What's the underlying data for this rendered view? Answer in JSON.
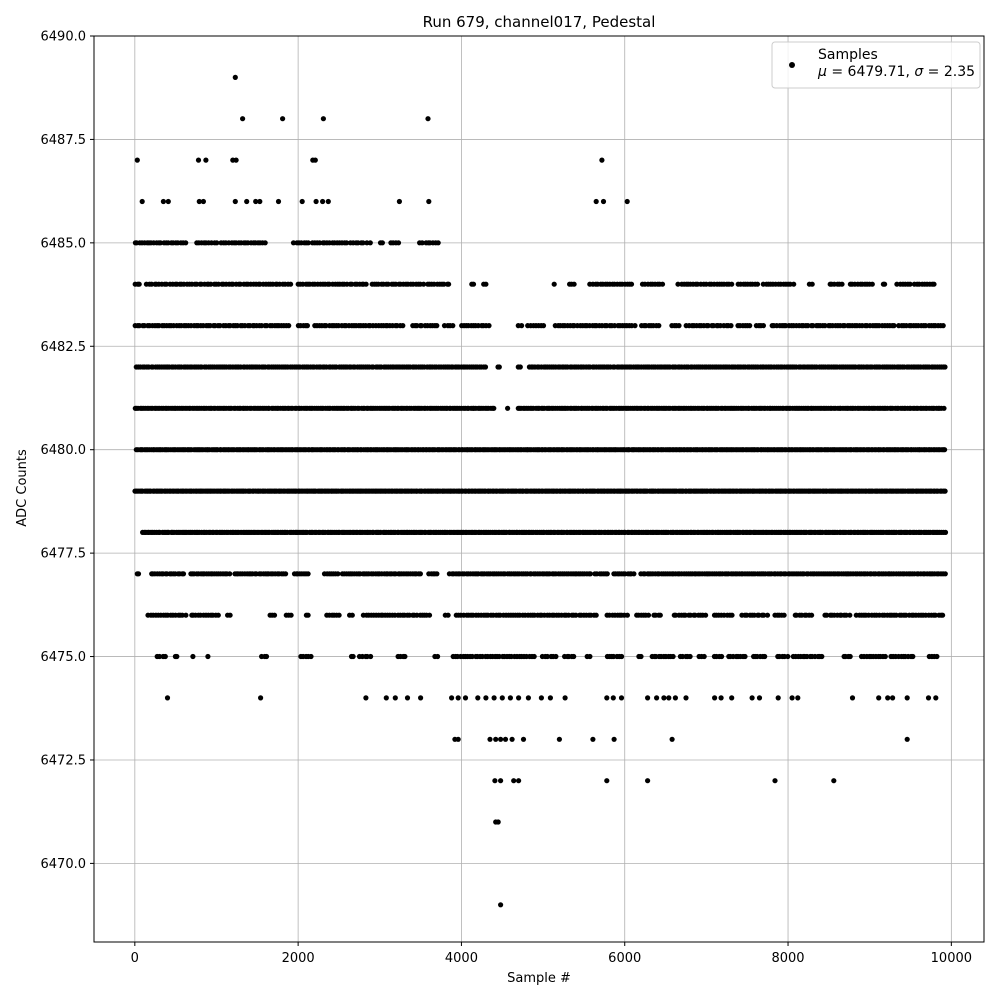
{
  "chart_data": {
    "type": "scatter",
    "title": "Run 679, channel017, Pedestal",
    "xlabel": "Sample #",
    "ylabel": "ADC Counts",
    "xlim": [
      -500,
      10400
    ],
    "ylim": [
      6468.1,
      6490.0
    ],
    "x_ticks": [
      0,
      2000,
      4000,
      6000,
      8000,
      10000
    ],
    "x_tick_labels": [
      "0",
      "2000",
      "4000",
      "6000",
      "8000",
      "10000"
    ],
    "y_ticks": [
      6470.0,
      6472.5,
      6475.0,
      6477.5,
      6480.0,
      6482.5,
      6485.0,
      6487.5,
      6490.0
    ],
    "y_tick_labels": [
      "6470.0",
      "6472.5",
      "6475.0",
      "6477.5",
      "6480.0",
      "6482.5",
      "6485.0",
      "6487.5",
      "6490.0"
    ],
    "grid": true,
    "legend_position": "top-right",
    "series": [
      {
        "name": "Samples",
        "color": "#000000",
        "marker": "circle",
        "points": [
          [
            30,
            6487
          ],
          [
            780,
            6487
          ],
          [
            870,
            6487
          ],
          [
            1200,
            6487
          ],
          [
            1240,
            6487
          ],
          [
            2180,
            6487
          ],
          [
            2210,
            6487
          ],
          [
            5720,
            6487
          ],
          [
            1230,
            6489
          ],
          [
            1320,
            6488
          ],
          [
            1810,
            6488
          ],
          [
            2310,
            6488
          ],
          [
            3590,
            6488
          ],
          [
            4480,
            6469
          ],
          [
            90,
            6486
          ],
          [
            350,
            6486
          ],
          [
            410,
            6486
          ],
          [
            790,
            6486
          ],
          [
            840,
            6486
          ],
          [
            1230,
            6486
          ],
          [
            1370,
            6486
          ],
          [
            1480,
            6486
          ],
          [
            1530,
            6486
          ],
          [
            1760,
            6486
          ],
          [
            2050,
            6486
          ],
          [
            2220,
            6486
          ],
          [
            2300,
            6486
          ],
          [
            2370,
            6486
          ],
          [
            3240,
            6486
          ],
          [
            3600,
            6486
          ],
          [
            5650,
            6486
          ],
          [
            5740,
            6486
          ],
          [
            6030,
            6486
          ],
          [
            4420,
            6471
          ],
          [
            4450,
            6471
          ],
          [
            4410,
            6472
          ],
          [
            4480,
            6472
          ],
          [
            4640,
            6472
          ],
          [
            4700,
            6472
          ],
          [
            5780,
            6472
          ],
          [
            6280,
            6472
          ],
          [
            7840,
            6472
          ],
          [
            8560,
            6472
          ],
          [
            3920,
            6473
          ],
          [
            3960,
            6473
          ],
          [
            4350,
            6473
          ],
          [
            4420,
            6473
          ],
          [
            4480,
            6473
          ],
          [
            4540,
            6473
          ],
          [
            4620,
            6473
          ],
          [
            4760,
            6473
          ],
          [
            5200,
            6473
          ],
          [
            5610,
            6473
          ],
          [
            5870,
            6473
          ],
          [
            6580,
            6473
          ],
          [
            9460,
            6473
          ],
          [
            400,
            6474
          ],
          [
            1540,
            6474
          ],
          [
            2830,
            6474
          ],
          [
            3080,
            6474
          ],
          [
            3190,
            6474
          ],
          [
            3340,
            6474
          ],
          [
            3500,
            6474
          ],
          [
            3880,
            6474
          ],
          [
            3960,
            6474
          ],
          [
            4050,
            6474
          ],
          [
            4200,
            6474
          ],
          [
            4300,
            6474
          ],
          [
            4400,
            6474
          ],
          [
            4500,
            6474
          ],
          [
            4600,
            6474
          ],
          [
            4700,
            6474
          ],
          [
            4820,
            6474
          ],
          [
            4980,
            6474
          ],
          [
            5090,
            6474
          ],
          [
            5270,
            6474
          ],
          [
            5780,
            6474
          ],
          [
            5860,
            6474
          ],
          [
            5960,
            6474
          ],
          [
            6280,
            6474
          ],
          [
            6390,
            6474
          ],
          [
            6480,
            6474
          ],
          [
            6540,
            6474
          ],
          [
            6620,
            6474
          ],
          [
            6750,
            6474
          ],
          [
            7100,
            6474
          ],
          [
            7180,
            6474
          ],
          [
            7310,
            6474
          ],
          [
            7560,
            6474
          ],
          [
            7650,
            6474
          ],
          [
            7880,
            6474
          ],
          [
            8050,
            6474
          ],
          [
            8120,
            6474
          ],
          [
            8790,
            6474
          ],
          [
            9110,
            6474
          ],
          [
            9220,
            6474
          ],
          [
            9280,
            6474
          ],
          [
            9460,
            6474
          ],
          [
            9720,
            6474
          ],
          [
            9810,
            6474
          ]
        ],
        "bands": [
          {
            "y": 6485,
            "segments": [
              [
                0,
                180
              ],
              [
                200,
                640
              ],
              [
                760,
                1000
              ],
              [
                1060,
                1600
              ],
              [
                1950,
                2130
              ],
              [
                2180,
                2600
              ],
              [
                2650,
                2800
              ],
              [
                2850,
                2880
              ],
              [
                3010,
                3040
              ],
              [
                3140,
                3250
              ],
              [
                3490,
                3520
              ],
              [
                3560,
                3720
              ]
            ],
            "step": 30
          },
          {
            "y": 6484,
            "segments": [
              [
                0,
                60
              ],
              [
                150,
                400
              ],
              [
                430,
                1900
              ],
              [
                2000,
                2850
              ],
              [
                2900,
                3550
              ],
              [
                3580,
                3850
              ],
              [
                4120,
                4170
              ],
              [
                4270,
                4310
              ],
              [
                5140,
                5160
              ],
              [
                5320,
                5380
              ],
              [
                5580,
                6100
              ],
              [
                6220,
                6460
              ],
              [
                6660,
                7000
              ],
              [
                7040,
                7320
              ],
              [
                7390,
                7650
              ],
              [
                7700,
                8060
              ],
              [
                8270,
                8320
              ],
              [
                8510,
                8660
              ],
              [
                8760,
                9050
              ],
              [
                9160,
                9200
              ],
              [
                9340,
                9500
              ],
              [
                9550,
                9800
              ]
            ],
            "step": 30
          },
          {
            "y": 6483,
            "segments": [
              [
                0,
                1900
              ],
              [
                2000,
                2140
              ],
              [
                2200,
                3300
              ],
              [
                3400,
                3700
              ],
              [
                3800,
                3900
              ],
              [
                4000,
                4350
              ],
              [
                4700,
                4730
              ],
              [
                4820,
                5000
              ],
              [
                5150,
                5850
              ],
              [
                5880,
                6120
              ],
              [
                6200,
                6420
              ],
              [
                6580,
                6680
              ],
              [
                6760,
                7300
              ],
              [
                7390,
                7560
              ],
              [
                7610,
                7700
              ],
              [
                7800,
                9300
              ],
              [
                9360,
                9900
              ]
            ],
            "step": 30
          },
          {
            "y": 6482,
            "segments": [
              [
                0,
                4300
              ],
              [
                4440,
                4470
              ],
              [
                4690,
                4720
              ],
              [
                4830,
                9930
              ]
            ],
            "step": 25
          },
          {
            "y": 6481,
            "segments": [
              [
                0,
                4400
              ],
              [
                4570,
                4580
              ],
              [
                4690,
                9930
              ]
            ],
            "step": 22
          },
          {
            "y": 6480,
            "segments": [
              [
                0,
                9930
              ]
            ],
            "step": 20
          },
          {
            "y": 6479,
            "segments": [
              [
                0,
                9930
              ]
            ],
            "step": 20
          },
          {
            "y": 6478,
            "segments": [
              [
                90,
                9930
              ]
            ],
            "step": 22
          },
          {
            "y": 6477,
            "segments": [
              [
                0,
                70
              ],
              [
                200,
                620
              ],
              [
                680,
                1160
              ],
              [
                1220,
                1860
              ],
              [
                1950,
                2130
              ],
              [
                2330,
                2500
              ],
              [
                2540,
                2870
              ],
              [
                2900,
                3500
              ],
              [
                3600,
                3710
              ],
              [
                3860,
                5600
              ],
              [
                5640,
                5800
              ],
              [
                5860,
                6130
              ],
              [
                6200,
                9930
              ]
            ],
            "step": 25
          },
          {
            "y": 6476,
            "segments": [
              [
                170,
                640
              ],
              [
                690,
                1030
              ],
              [
                1130,
                1180
              ],
              [
                1650,
                1720
              ],
              [
                1850,
                1920
              ],
              [
                2100,
                2150
              ],
              [
                2350,
                2500
              ],
              [
                2630,
                2660
              ],
              [
                2800,
                3620
              ],
              [
                3800,
                3850
              ],
              [
                3940,
                5650
              ],
              [
                5790,
                6030
              ],
              [
                6140,
                6300
              ],
              [
                6350,
                6450
              ],
              [
                6600,
                7000
              ],
              [
                7100,
                7320
              ],
              [
                7440,
                7750
              ],
              [
                7840,
                7960
              ],
              [
                8080,
                8300
              ],
              [
                8450,
                8760
              ],
              [
                8840,
                8990
              ],
              [
                9030,
                9930
              ]
            ],
            "step": 30
          },
          {
            "y": 6475,
            "segments": [
              [
                280,
                370
              ],
              [
                490,
                520
              ],
              [
                720,
                740
              ],
              [
                900,
                920
              ],
              [
                1560,
                1620
              ],
              [
                2030,
                2150
              ],
              [
                2650,
                2680
              ],
              [
                2760,
                2900
              ],
              [
                3220,
                3330
              ],
              [
                3670,
                3700
              ],
              [
                3900,
                4900
              ],
              [
                5000,
                5150
              ],
              [
                5260,
                5400
              ],
              [
                5540,
                5580
              ],
              [
                5780,
                5980
              ],
              [
                6170,
                6220
              ],
              [
                6330,
                6620
              ],
              [
                6680,
                6800
              ],
              [
                6920,
                6980
              ],
              [
                7100,
                7200
              ],
              [
                7270,
                7480
              ],
              [
                7570,
                7720
              ],
              [
                7870,
                8000
              ],
              [
                8060,
                8430
              ],
              [
                8680,
                8770
              ],
              [
                8900,
                9200
              ],
              [
                9260,
                9540
              ],
              [
                9730,
                9840
              ]
            ],
            "step": 30
          }
        ]
      }
    ],
    "legend": {
      "entry_label": "Samples",
      "stat_mu_symbol": "μ",
      "stat_mu_value": " = 6479.71, ",
      "stat_sigma_symbol": "σ",
      "stat_sigma_value": " = 2.35"
    }
  }
}
